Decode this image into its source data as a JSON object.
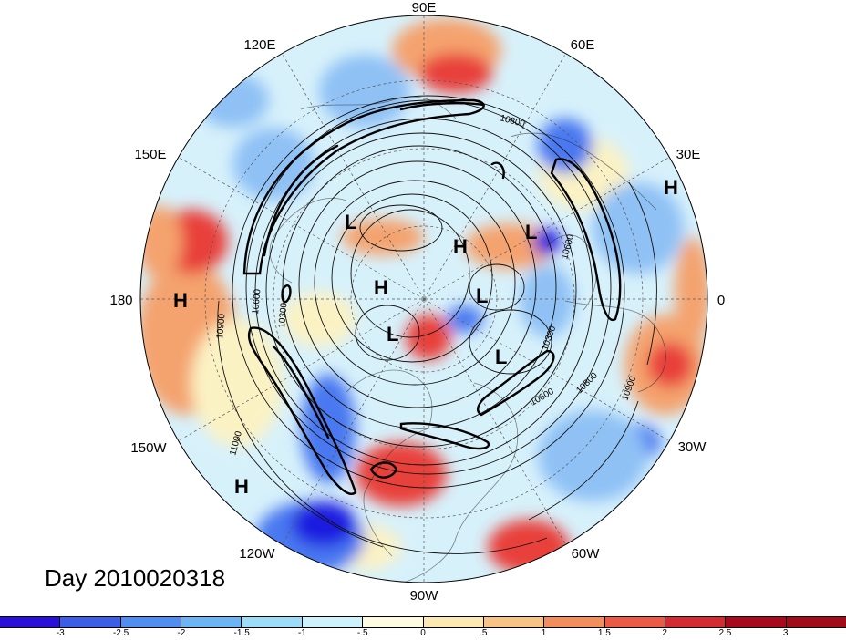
{
  "map": {
    "projection": "polar-stereographic-north",
    "center_lon_at_right": "0",
    "lon_labels": {
      "deg90e": "90E",
      "deg60e": "60E",
      "deg30e": "30E",
      "deg0": "0",
      "deg30w": "30W",
      "deg60w": "60W",
      "deg90w": "90W",
      "deg120w": "120W",
      "deg150w": "150W",
      "deg180": "180",
      "deg150e": "150E",
      "deg120e": "120E"
    },
    "pressure_centers": [
      {
        "id": "h-30e",
        "label": "H"
      },
      {
        "id": "h-180",
        "label": "H"
      },
      {
        "id": "h-120w",
        "label": "H"
      },
      {
        "id": "l-siberia",
        "label": "L"
      },
      {
        "id": "h-arctic",
        "label": "H"
      },
      {
        "id": "h-pole",
        "label": "H"
      },
      {
        "id": "l-scandinavia",
        "label": "L"
      },
      {
        "id": "l-barents",
        "label": "L"
      },
      {
        "id": "l-canada",
        "label": "L"
      },
      {
        "id": "l-atlantic",
        "label": "L"
      }
    ],
    "contour_values": {
      "c1": "10800",
      "c2": "10900",
      "c3": "10600",
      "c4": "10300",
      "c5": "11000",
      "c6": "10600",
      "c7": "10800",
      "c8": "10900",
      "c9": "10300",
      "c10": "10600"
    },
    "colors": {
      "dark_blue": "#1e1ee0",
      "blue": "#4a78f0",
      "light_blue": "#8fc1f5",
      "pale_blue": "#d7f1fb",
      "pale_yellow": "#fbf2c4",
      "orange": "#f4a36e",
      "red": "#e8413a",
      "dark_red": "#b3111f"
    }
  },
  "date_label": "Day 2010020318",
  "colorbar": {
    "colors": [
      "#2a0fd8",
      "#3a5ee6",
      "#4f8ef0",
      "#6cb5f5",
      "#9cdcf8",
      "#cdf2fc",
      "#fdfbe0",
      "#fce9b2",
      "#f8c485",
      "#f28e5c",
      "#ec5a45",
      "#d42a31",
      "#a9091c",
      "#a30a1a"
    ],
    "ticks": [
      "-3",
      "-2.5",
      "-2",
      "-1.5",
      "-1",
      "-.5",
      "0",
      ".5",
      "1",
      "1.5",
      "2",
      "2.5",
      "3"
    ]
  }
}
